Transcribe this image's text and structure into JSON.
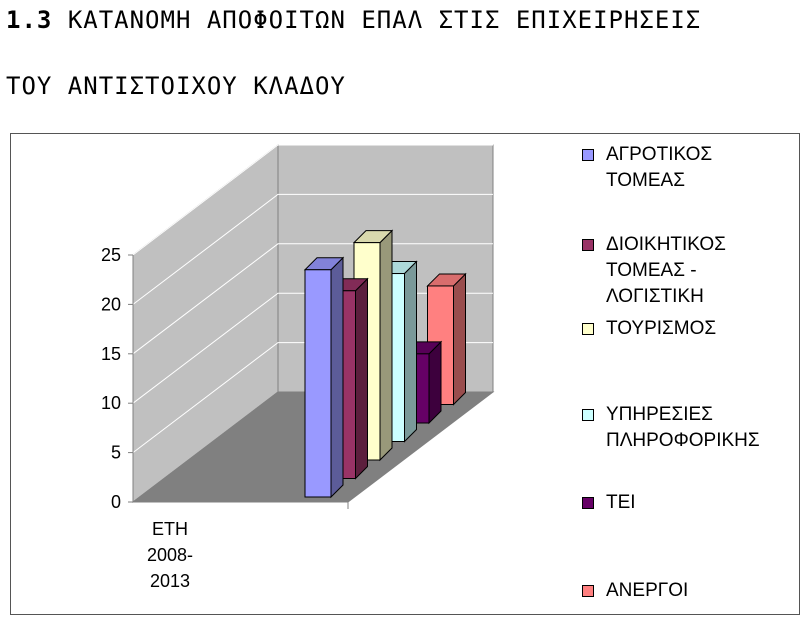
{
  "title": {
    "number": "1.3",
    "line1": "ΚΑΤΑΝΟΜΗ ΑΠΟΦΟΙΤΩΝ ΕΠΑΛ ΣΤΙΣ ΕΠΙΧΕΙΡΗΣΕΙΣ",
    "line2": "ΤΟΥ ΑΝΤΙΣΤΟΙΧΟΥ ΚΛΑΔΟΥ"
  },
  "chart_data": {
    "type": "bar",
    "style": "3d-clustered-column",
    "categories": [
      "ΕΤΗ 2008-2013"
    ],
    "category_lines": [
      "ΕΤΗ",
      "2008-",
      "2013"
    ],
    "ylim": [
      0,
      25
    ],
    "yticks": [
      "0",
      "5",
      "10",
      "15",
      "20",
      "25"
    ],
    "grid": true,
    "legend_position": "right",
    "series": [
      {
        "name": "ΑΓΡΟΤΙΚΟΣ ΤΟΜΕΑΣ",
        "name_lines": [
          "ΑΓΡΟΤΙΚΟΣ",
          "ΤΟΜΕΑΣ"
        ],
        "values": [
          23
        ],
        "color": "#9999ff"
      },
      {
        "name": "ΔΙΟΙΚΗΤΙΚΟΣ ΤΟΜΕΑΣ - ΛΟΓΙΣΤΙΚΗ",
        "name_lines": [
          "ΔΙΟΙΚΗΤΙΚΟΣ",
          "ΤΟΜΕΑΣ -",
          "ΛΟΓΙΣΤΙΚΗ"
        ],
        "values": [
          19
        ],
        "color": "#993366"
      },
      {
        "name": "ΤΟΥΡΙΣΜΟΣ",
        "name_lines": [
          "ΤΟΥΡΙΣΜΟΣ"
        ],
        "values": [
          22
        ],
        "color": "#ffffcc"
      },
      {
        "name": "ΥΠΗΡΕΣΙΕΣ ΠΛΗΡΟΦΟΡΙΚΗΣ",
        "name_lines": [
          "ΥΠΗΡΕΣΙΕΣ",
          "ΠΛΗΡΟΦΟΡΙΚΗΣ"
        ],
        "values": [
          17
        ],
        "color": "#ccffff"
      },
      {
        "name": "ΤΕΙ",
        "name_lines": [
          "ΤΕΙ"
        ],
        "values": [
          7
        ],
        "color": "#660066"
      },
      {
        "name": "ΑΝΕΡΓΟΙ",
        "name_lines": [
          "ΑΝΕΡΓΟΙ"
        ],
        "values": [
          12
        ],
        "color": "#ff8080"
      }
    ]
  },
  "colors": {
    "wall": "#c0c0c0",
    "floor": "#808080",
    "gridline": "#ffffff"
  }
}
